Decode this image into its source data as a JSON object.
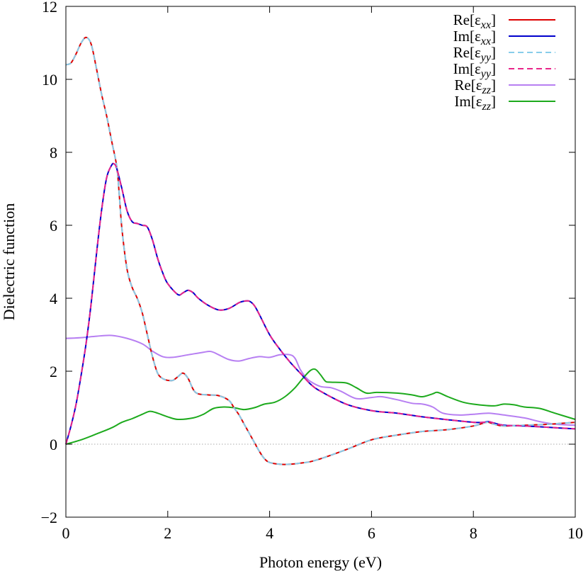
{
  "chart_data": {
    "type": "line",
    "title": "",
    "xlabel": "Photon energy (eV)",
    "ylabel": "Dielectric function",
    "xlim": [
      0,
      10
    ],
    "ylim": [
      -2,
      12
    ],
    "xticks": [
      0,
      2,
      4,
      6,
      8,
      10
    ],
    "yticks": [
      -2,
      0,
      2,
      4,
      6,
      8,
      10,
      12
    ],
    "xtick_labels": [
      "0",
      "2",
      "4",
      "6",
      "8",
      "10"
    ],
    "ytick_labels": [
      "−2",
      "0",
      "2",
      "4",
      "6",
      "8",
      "10",
      "12"
    ],
    "grid": false,
    "legend_position": "top-right",
    "zero_line": {
      "y": 0,
      "color": "#aaaaaa",
      "style": "dotted"
    },
    "series": [
      {
        "name": "Re[εxx]",
        "label_base": "Re[ε",
        "label_sub": "xx",
        "label_end": "]",
        "color": "#dd0000",
        "dash": "solid",
        "x": [
          0,
          0.1,
          0.2,
          0.3,
          0.4,
          0.5,
          0.6,
          0.7,
          0.8,
          0.9,
          1.0,
          1.05,
          1.1,
          1.2,
          1.3,
          1.4,
          1.5,
          1.6,
          1.7,
          1.8,
          1.9,
          2.0,
          2.1,
          2.2,
          2.3,
          2.4,
          2.5,
          2.6,
          2.8,
          3.0,
          3.2,
          3.3,
          3.4,
          3.5,
          3.6,
          3.7,
          3.8,
          3.9,
          4.0,
          4.2,
          4.4,
          4.6,
          4.8,
          5.0,
          5.5,
          6.0,
          6.5,
          7.0,
          7.5,
          8.0,
          8.2,
          8.3,
          8.4,
          8.6,
          9.0,
          9.5,
          10.0
        ],
        "y": [
          10.4,
          10.45,
          10.7,
          11.0,
          11.15,
          10.95,
          10.3,
          9.6,
          9.0,
          8.3,
          7.6,
          6.8,
          5.9,
          4.8,
          4.3,
          4.0,
          3.6,
          3.0,
          2.4,
          1.95,
          1.8,
          1.75,
          1.75,
          1.85,
          1.95,
          1.8,
          1.5,
          1.38,
          1.35,
          1.33,
          1.2,
          1.0,
          0.8,
          0.55,
          0.3,
          0.05,
          -0.2,
          -0.4,
          -0.5,
          -0.55,
          -0.55,
          -0.52,
          -0.48,
          -0.4,
          -0.15,
          0.12,
          0.25,
          0.35,
          0.4,
          0.5,
          0.58,
          0.6,
          0.55,
          0.5,
          0.52,
          0.55,
          0.6
        ]
      },
      {
        "name": "Im[εxx]",
        "label_base": "Im[ε",
        "label_sub": "xx",
        "label_end": "]",
        "color": "#0000cc",
        "dash": "solid",
        "x": [
          0,
          0.1,
          0.2,
          0.3,
          0.4,
          0.5,
          0.6,
          0.7,
          0.8,
          0.9,
          0.95,
          1.0,
          1.1,
          1.2,
          1.3,
          1.4,
          1.5,
          1.6,
          1.7,
          1.8,
          1.9,
          2.0,
          2.2,
          2.3,
          2.4,
          2.5,
          2.6,
          2.8,
          3.0,
          3.2,
          3.4,
          3.5,
          3.6,
          3.7,
          3.8,
          4.0,
          4.2,
          4.4,
          4.6,
          4.8,
          5.0,
          5.5,
          6.0,
          6.5,
          7.0,
          7.5,
          8.0,
          8.2,
          8.3,
          8.4,
          8.6,
          9.0,
          9.5,
          10.0
        ],
        "y": [
          0.0,
          0.5,
          1.1,
          1.9,
          2.8,
          3.9,
          5.2,
          6.4,
          7.3,
          7.65,
          7.68,
          7.55,
          7.0,
          6.4,
          6.1,
          6.05,
          6.0,
          5.95,
          5.6,
          5.1,
          4.7,
          4.4,
          4.1,
          4.15,
          4.22,
          4.15,
          4.0,
          3.8,
          3.68,
          3.72,
          3.88,
          3.92,
          3.92,
          3.8,
          3.55,
          3.0,
          2.6,
          2.25,
          1.95,
          1.65,
          1.45,
          1.1,
          0.92,
          0.85,
          0.75,
          0.67,
          0.6,
          0.6,
          0.62,
          0.58,
          0.52,
          0.5,
          0.46,
          0.42
        ]
      },
      {
        "name": "Re[εyy]",
        "label_base": "Re[ε",
        "label_sub": "yy",
        "label_end": "]",
        "color": "#87cdea",
        "dash": "dashed",
        "x": [
          0,
          0.1,
          0.2,
          0.3,
          0.4,
          0.5,
          0.6,
          0.7,
          0.8,
          0.9,
          1.0,
          1.05,
          1.1,
          1.2,
          1.3,
          1.4,
          1.5,
          1.6,
          1.7,
          1.8,
          1.9,
          2.0,
          2.1,
          2.2,
          2.3,
          2.4,
          2.5,
          2.6,
          2.8,
          3.0,
          3.2,
          3.3,
          3.4,
          3.5,
          3.6,
          3.7,
          3.8,
          3.9,
          4.0,
          4.2,
          4.4,
          4.6,
          4.8,
          5.0,
          5.5,
          6.0,
          6.5,
          7.0,
          7.5,
          8.0,
          8.2,
          8.3,
          8.4,
          8.6,
          9.0,
          9.5,
          10.0
        ],
        "y": [
          10.4,
          10.45,
          10.7,
          11.0,
          11.15,
          10.95,
          10.3,
          9.6,
          9.0,
          8.3,
          7.6,
          6.8,
          5.9,
          4.8,
          4.3,
          4.0,
          3.6,
          3.0,
          2.4,
          1.95,
          1.8,
          1.75,
          1.75,
          1.85,
          1.95,
          1.8,
          1.5,
          1.38,
          1.35,
          1.33,
          1.2,
          1.0,
          0.8,
          0.55,
          0.3,
          0.05,
          -0.2,
          -0.4,
          -0.5,
          -0.55,
          -0.55,
          -0.52,
          -0.48,
          -0.4,
          -0.15,
          0.12,
          0.25,
          0.35,
          0.4,
          0.5,
          0.58,
          0.6,
          0.55,
          0.5,
          0.52,
          0.55,
          0.6
        ]
      },
      {
        "name": "Im[εyy]",
        "label_base": "Im[ε",
        "label_sub": "yy",
        "label_end": "]",
        "color": "#e8258a",
        "dash": "dashed",
        "x": [
          0,
          0.1,
          0.2,
          0.3,
          0.4,
          0.5,
          0.6,
          0.7,
          0.8,
          0.9,
          0.95,
          1.0,
          1.1,
          1.2,
          1.3,
          1.4,
          1.5,
          1.6,
          1.7,
          1.8,
          1.9,
          2.0,
          2.2,
          2.3,
          2.4,
          2.5,
          2.6,
          2.8,
          3.0,
          3.2,
          3.4,
          3.5,
          3.6,
          3.7,
          3.8,
          4.0,
          4.2,
          4.4,
          4.6,
          4.8,
          5.0,
          5.5,
          6.0,
          6.5,
          7.0,
          7.5,
          8.0,
          8.2,
          8.3,
          8.4,
          8.6,
          9.0,
          9.5,
          10.0
        ],
        "y": [
          0.0,
          0.5,
          1.1,
          1.9,
          2.8,
          3.9,
          5.2,
          6.4,
          7.3,
          7.65,
          7.68,
          7.55,
          7.0,
          6.4,
          6.1,
          6.05,
          6.0,
          5.95,
          5.6,
          5.1,
          4.7,
          4.4,
          4.1,
          4.15,
          4.22,
          4.15,
          4.0,
          3.8,
          3.68,
          3.72,
          3.88,
          3.92,
          3.92,
          3.8,
          3.55,
          3.0,
          2.6,
          2.25,
          1.95,
          1.65,
          1.45,
          1.1,
          0.92,
          0.85,
          0.75,
          0.67,
          0.6,
          0.6,
          0.62,
          0.58,
          0.52,
          0.5,
          0.46,
          0.42
        ]
      },
      {
        "name": "Re[εzz]",
        "label_base": "Re[ε",
        "label_sub": "zz",
        "label_end": "]",
        "color": "#b77ff2",
        "dash": "solid",
        "x": [
          0,
          0.3,
          0.6,
          0.9,
          1.2,
          1.5,
          1.7,
          1.9,
          2.1,
          2.4,
          2.7,
          2.85,
          3.0,
          3.2,
          3.4,
          3.6,
          3.8,
          4.0,
          4.2,
          4.4,
          4.5,
          4.6,
          4.7,
          4.8,
          5.0,
          5.2,
          5.4,
          5.7,
          6.0,
          6.2,
          6.5,
          6.8,
          7.0,
          7.2,
          7.4,
          7.7,
          8.0,
          8.3,
          8.6,
          9.0,
          9.3,
          9.6,
          10.0
        ],
        "y": [
          2.9,
          2.92,
          2.96,
          2.98,
          2.9,
          2.75,
          2.55,
          2.4,
          2.38,
          2.45,
          2.52,
          2.54,
          2.45,
          2.32,
          2.28,
          2.35,
          2.4,
          2.38,
          2.45,
          2.45,
          2.35,
          2.05,
          1.85,
          1.72,
          1.58,
          1.55,
          1.45,
          1.25,
          1.28,
          1.3,
          1.22,
          1.12,
          1.1,
          1.02,
          0.85,
          0.8,
          0.82,
          0.85,
          0.8,
          0.72,
          0.62,
          0.55,
          0.52
        ]
      },
      {
        "name": "Im[εzz]",
        "label_base": "Im[ε",
        "label_sub": "zz",
        "label_end": "]",
        "color": "#1daa1d",
        "dash": "solid",
        "x": [
          0,
          0.3,
          0.6,
          0.9,
          1.1,
          1.3,
          1.5,
          1.65,
          1.8,
          2.0,
          2.2,
          2.5,
          2.7,
          2.9,
          3.1,
          3.3,
          3.5,
          3.7,
          3.9,
          4.1,
          4.3,
          4.5,
          4.65,
          4.8,
          4.9,
          5.0,
          5.1,
          5.2,
          5.5,
          5.7,
          5.9,
          6.1,
          6.5,
          6.8,
          7.0,
          7.2,
          7.3,
          7.5,
          7.8,
          8.1,
          8.4,
          8.6,
          8.8,
          9.0,
          9.3,
          9.6,
          10.0
        ],
        "y": [
          0.0,
          0.12,
          0.28,
          0.45,
          0.6,
          0.7,
          0.82,
          0.9,
          0.85,
          0.75,
          0.68,
          0.72,
          0.82,
          0.98,
          1.02,
          1.0,
          0.95,
          1.0,
          1.1,
          1.15,
          1.3,
          1.55,
          1.8,
          2.02,
          2.05,
          1.9,
          1.72,
          1.7,
          1.68,
          1.55,
          1.4,
          1.42,
          1.4,
          1.35,
          1.3,
          1.38,
          1.42,
          1.3,
          1.15,
          1.08,
          1.05,
          1.1,
          1.08,
          1.02,
          0.98,
          0.85,
          0.68
        ]
      }
    ]
  }
}
